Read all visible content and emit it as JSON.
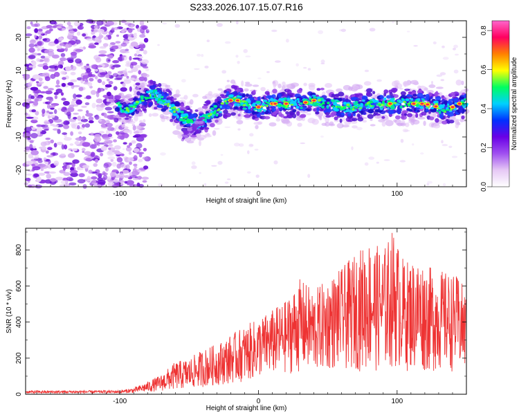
{
  "figure": {
    "title": "S233.2026.107.15.07.R16"
  },
  "chart_data": [
    {
      "type": "heatmap",
      "title": "",
      "xlabel": "Height of straight line (km)",
      "ylabel": "Frequency (Hz)",
      "xlim": [
        -168,
        150
      ],
      "ylim": [
        -25,
        25
      ],
      "xticks": [
        -100,
        0,
        100
      ],
      "yticks": [
        -20,
        -10,
        0,
        10,
        20
      ],
      "xtick_labels": [
        "-100",
        "0",
        "100"
      ],
      "ytick_labels": [
        "-20",
        "-10",
        "0",
        "10",
        "20"
      ],
      "noise_region_xmax": -84,
      "signal_track": [
        {
          "x": -100,
          "f": -1
        },
        {
          "x": -95,
          "f": -2
        },
        {
          "x": -90,
          "f": -1
        },
        {
          "x": -85,
          "f": 1
        },
        {
          "x": -80,
          "f": 2
        },
        {
          "x": -75,
          "f": 3
        },
        {
          "x": -70,
          "f": 1
        },
        {
          "x": -65,
          "f": 0
        },
        {
          "x": -60,
          "f": -2
        },
        {
          "x": -55,
          "f": -4
        },
        {
          "x": -50,
          "f": -5
        },
        {
          "x": -45,
          "f": -6
        },
        {
          "x": -40,
          "f": -5
        },
        {
          "x": -35,
          "f": -3
        },
        {
          "x": -30,
          "f": -2
        },
        {
          "x": -25,
          "f": 0
        },
        {
          "x": -20,
          "f": 1
        },
        {
          "x": -15,
          "f": 1
        },
        {
          "x": -10,
          "f": 0
        },
        {
          "x": -5,
          "f": 0
        },
        {
          "x": 0,
          "f": -1
        },
        {
          "x": 10,
          "f": 0
        },
        {
          "x": 20,
          "f": 0
        },
        {
          "x": 30,
          "f": 0
        },
        {
          "x": 40,
          "f": 1
        },
        {
          "x": 50,
          "f": 0
        },
        {
          "x": 60,
          "f": -1
        },
        {
          "x": 70,
          "f": -1
        },
        {
          "x": 80,
          "f": 0
        },
        {
          "x": 90,
          "f": 0
        },
        {
          "x": 100,
          "f": 0
        },
        {
          "x": 110,
          "f": 0
        },
        {
          "x": 120,
          "f": 0
        },
        {
          "x": 130,
          "f": -1
        },
        {
          "x": 135,
          "f": -2
        },
        {
          "x": 140,
          "f": -1
        },
        {
          "x": 145,
          "f": 0
        },
        {
          "x": 150,
          "f": 0
        }
      ],
      "hotspots_x": [
        -20,
        -15,
        0,
        10,
        12,
        20,
        34,
        40,
        95,
        112,
        118,
        122,
        128,
        140,
        145
      ],
      "colorbar": {
        "label": "Normalized spectral amplitude",
        "min": 0.0,
        "max": 0.85,
        "ticks": [
          0.0,
          0.2,
          0.4,
          0.6,
          0.8
        ],
        "tick_labels": [
          "0.0",
          "0.2",
          "0.4",
          "0.6",
          "0.8"
        ],
        "colors": [
          "#ffffff",
          "#e6c8f5",
          "#a050f0",
          "#6a00e6",
          "#0030ff",
          "#00d0ff",
          "#00ff60",
          "#ffff00",
          "#ff8000",
          "#ff0060",
          "#ff66cc"
        ]
      },
      "secondary_track": [
        {
          "x": -55,
          "f": -10
        },
        {
          "x": -45,
          "f": -7
        },
        {
          "x": -40,
          "f": -5
        }
      ]
    },
    {
      "type": "line",
      "title": "",
      "xlabel": "Height of straight line (km)",
      "ylabel": "SNR (10 * v/v)",
      "xlim": [
        -168,
        150
      ],
      "ylim": [
        0,
        920
      ],
      "xticks": [
        -100,
        0,
        100
      ],
      "yticks": [
        0,
        200,
        400,
        600,
        800
      ],
      "xtick_labels": [
        "-100",
        "0",
        "100"
      ],
      "ytick_labels": [
        "0",
        "200",
        "400",
        "600",
        "800"
      ],
      "line_color": "#ee3333",
      "envelope": [
        {
          "x": -168,
          "lo": 5,
          "hi": 20
        },
        {
          "x": -100,
          "lo": 5,
          "hi": 22
        },
        {
          "x": -90,
          "lo": 8,
          "hi": 35
        },
        {
          "x": -80,
          "lo": 12,
          "hi": 70
        },
        {
          "x": -70,
          "lo": 18,
          "hi": 110
        },
        {
          "x": -60,
          "lo": 25,
          "hi": 180
        },
        {
          "x": -50,
          "lo": 30,
          "hi": 200
        },
        {
          "x": -40,
          "lo": 40,
          "hi": 250
        },
        {
          "x": -30,
          "lo": 50,
          "hi": 280
        },
        {
          "x": -20,
          "lo": 60,
          "hi": 330
        },
        {
          "x": -10,
          "lo": 70,
          "hi": 380
        },
        {
          "x": 0,
          "lo": 90,
          "hi": 420
        },
        {
          "x": 10,
          "lo": 100,
          "hi": 470
        },
        {
          "x": 20,
          "lo": 110,
          "hi": 520
        },
        {
          "x": 30,
          "lo": 120,
          "hi": 640
        },
        {
          "x": 40,
          "lo": 110,
          "hi": 580
        },
        {
          "x": 50,
          "lo": 130,
          "hi": 640
        },
        {
          "x": 60,
          "lo": 130,
          "hi": 700
        },
        {
          "x": 70,
          "lo": 130,
          "hi": 780
        },
        {
          "x": 80,
          "lo": 120,
          "hi": 860
        },
        {
          "x": 90,
          "lo": 130,
          "hi": 800
        },
        {
          "x": 97,
          "lo": 140,
          "hi": 920
        },
        {
          "x": 105,
          "lo": 130,
          "hi": 740
        },
        {
          "x": 115,
          "lo": 120,
          "hi": 760
        },
        {
          "x": 125,
          "lo": 120,
          "hi": 700
        },
        {
          "x": 135,
          "lo": 130,
          "hi": 680
        },
        {
          "x": 145,
          "lo": 120,
          "hi": 650
        },
        {
          "x": 150,
          "lo": 120,
          "hi": 560
        }
      ]
    }
  ]
}
